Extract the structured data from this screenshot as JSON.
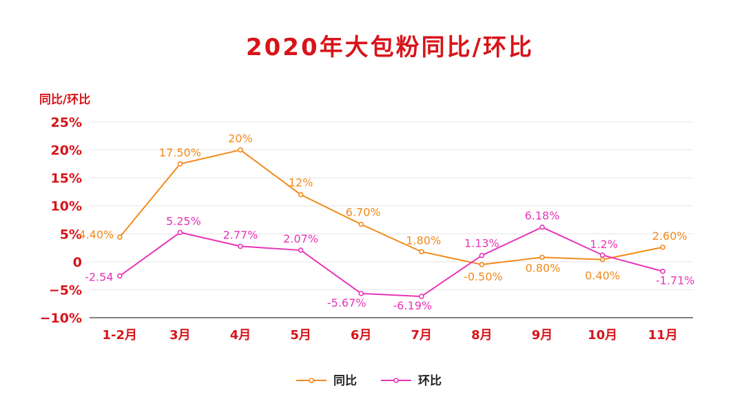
{
  "chart_data": {
    "type": "line",
    "title": "2020年大包粉同比/环比",
    "ylabel": "同比/环比",
    "xlabel": "",
    "categories": [
      "1-2月",
      "3月",
      "4月",
      "5月",
      "6月",
      "7月",
      "8月",
      "9月",
      "10月",
      "11月"
    ],
    "ylim": [
      -10,
      25
    ],
    "yticks": [
      25,
      20,
      15,
      10,
      5,
      0,
      -5,
      -10
    ],
    "ytick_labels": [
      "25%",
      "20%",
      "15%",
      "10%",
      "5%",
      "0",
      "−5%",
      "−10%"
    ],
    "grid": true,
    "legend_position": "bottom",
    "series": [
      {
        "name": "同比",
        "color": "#F28A1B",
        "values": [
          4.4,
          17.5,
          20,
          12,
          6.7,
          1.8,
          -0.5,
          0.8,
          0.4,
          2.6
        ],
        "labels": [
          "4.40%",
          "17.50%",
          "20%",
          "12%",
          "6.70%",
          "1.80%",
          "-0.50%",
          "0.80%",
          "0.40%",
          "2.60%"
        ]
      },
      {
        "name": "环比",
        "color": "#E834B8",
        "values": [
          -2.54,
          5.25,
          2.77,
          2.07,
          -5.67,
          -6.19,
          1.13,
          6.18,
          1.2,
          -1.71
        ],
        "labels": [
          "-2.54",
          "5.25%",
          "2.77%",
          "2.07%",
          "-5.67%",
          "-6.19%",
          "1.13%",
          "6.18%",
          "1.2%",
          "-1.71%"
        ]
      }
    ]
  },
  "colors": {
    "title": "#D7141A",
    "axis_text": "#D7141A",
    "grid": "#E4E4E4",
    "axis_line": "#333333",
    "legend_text": "#222222"
  }
}
